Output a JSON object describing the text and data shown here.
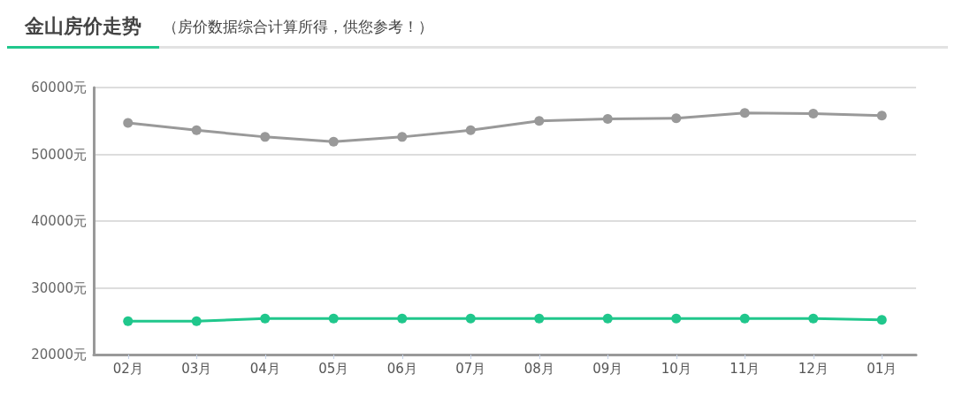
{
  "chart_data": {
    "type": "line",
    "title": "金山房价走势",
    "subtitle": "（房价数据综合计算所得，供您参考！）",
    "categories": [
      "02月",
      "03月",
      "04月",
      "05月",
      "06月",
      "07月",
      "08月",
      "09月",
      "10月",
      "11月",
      "12月",
      "01月"
    ],
    "series": [
      {
        "color": "#999999",
        "values": [
          54700,
          53600,
          52600,
          51900,
          52600,
          53600,
          55000,
          55300,
          55400,
          56200,
          56100,
          55800
        ]
      },
      {
        "color": "#20c78c",
        "values": [
          25000,
          25000,
          25400,
          25400,
          25400,
          25400,
          25400,
          25400,
          25400,
          25400,
          25400,
          25200
        ]
      }
    ],
    "ylim": [
      20000,
      60000
    ],
    "yticks": [
      {
        "value": 20000,
        "label": "20000元"
      },
      {
        "value": 30000,
        "label": "30000元"
      },
      {
        "value": 40000,
        "label": "40000元"
      },
      {
        "value": 50000,
        "label": "50000元"
      },
      {
        "value": 60000,
        "label": "60000元"
      }
    ],
    "grid": "y",
    "marker": "circle",
    "line_style": "solid"
  }
}
